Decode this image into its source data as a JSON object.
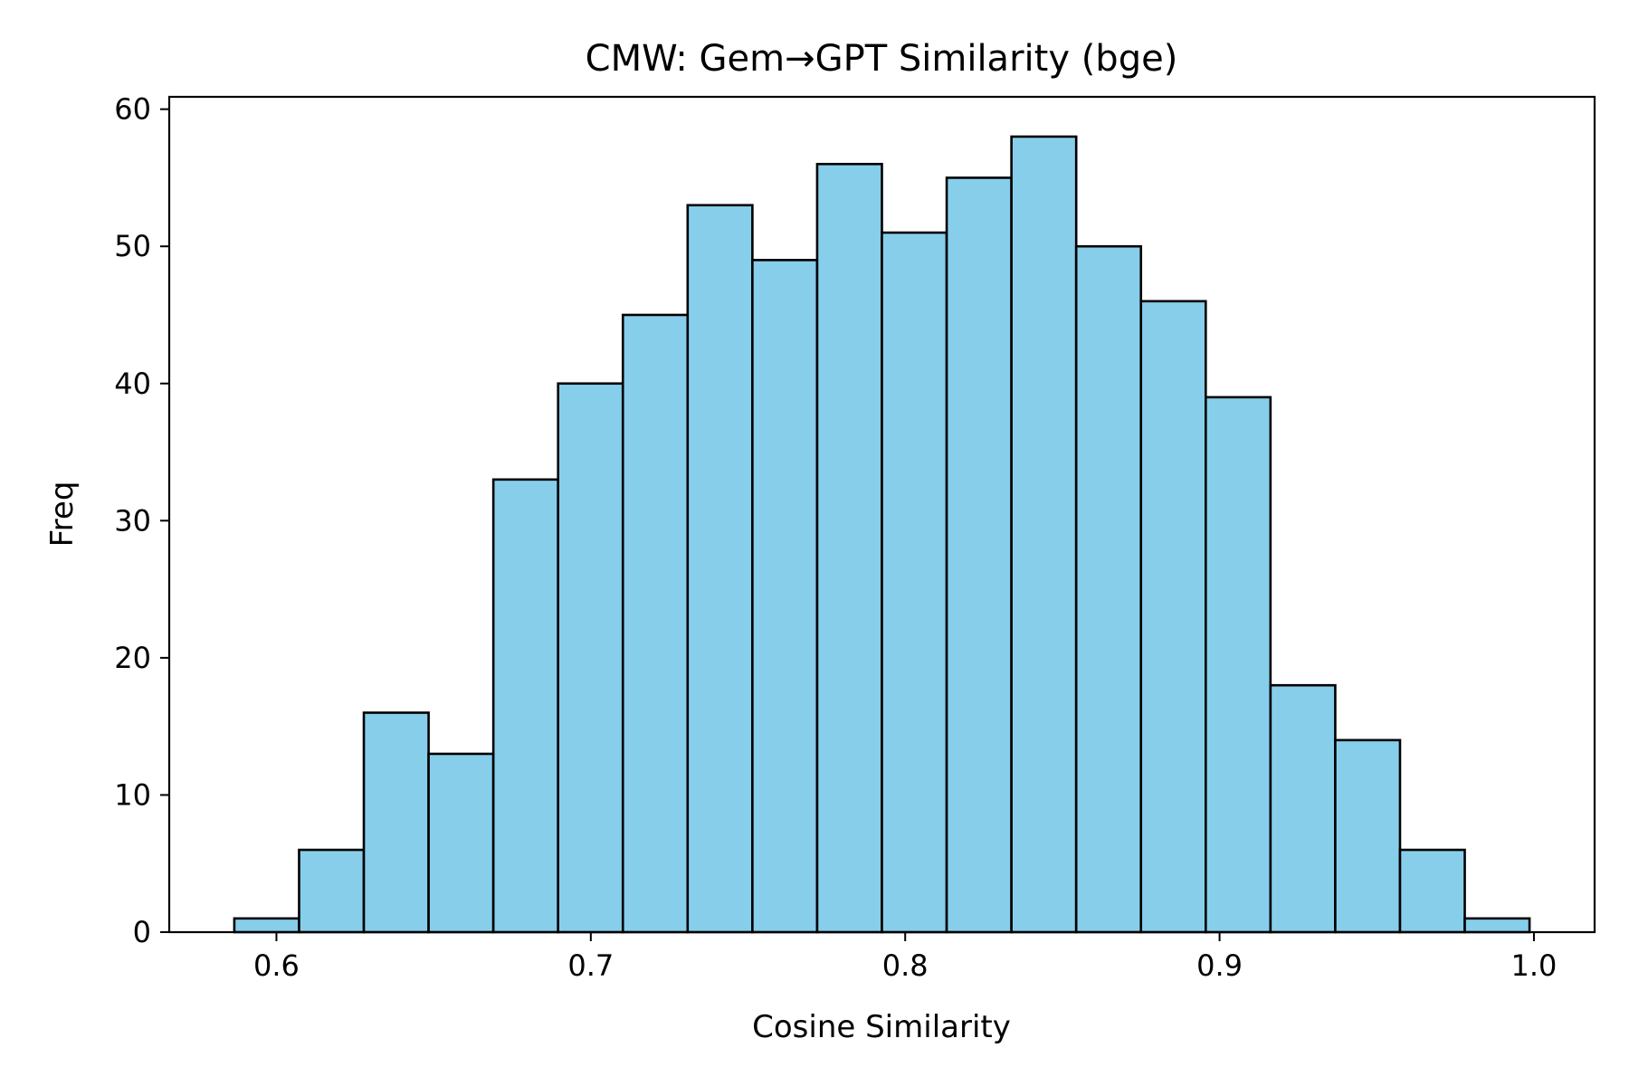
{
  "chart_data": {
    "type": "bar",
    "title": "CMW: Gem→GPT Similarity (bge)",
    "xlabel": "Cosine Similarity",
    "ylabel": "Freq",
    "bin_edges": [
      0.5866,
      0.6072,
      0.6278,
      0.6484,
      0.669,
      0.6896,
      0.7102,
      0.7308,
      0.7514,
      0.772,
      0.7926,
      0.8132,
      0.8338,
      0.8544,
      0.875,
      0.8956,
      0.9162,
      0.9368,
      0.9574,
      0.978,
      0.9986
    ],
    "values": [
      1,
      6,
      16,
      13,
      33,
      40,
      45,
      53,
      49,
      56,
      51,
      55,
      58,
      50,
      46,
      39,
      18,
      14,
      6,
      1
    ],
    "xlim": [
      0.5659,
      1.0193
    ],
    "ylim": [
      0,
      60.9
    ],
    "xticks": [
      0.6,
      0.7,
      0.8,
      0.9,
      1.0
    ],
    "xtick_labels": [
      "0.6",
      "0.7",
      "0.8",
      "0.9",
      "1.0"
    ],
    "yticks": [
      0,
      10,
      20,
      30,
      40,
      50,
      60
    ],
    "ytick_labels": [
      "0",
      "10",
      "20",
      "30",
      "40",
      "50",
      "60"
    ],
    "grid": false,
    "colors": {
      "bar_fill": "#87CEEB",
      "bar_edge": "#000000",
      "axes": "#000000",
      "background": "#ffffff"
    }
  }
}
